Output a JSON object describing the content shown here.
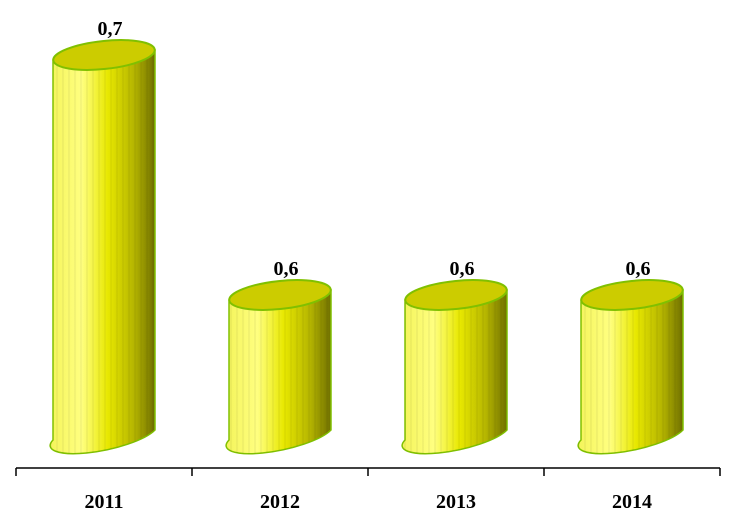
{
  "chart_data": {
    "type": "bar",
    "categories": [
      "2011",
      "2012",
      "2013",
      "2014"
    ],
    "values": [
      0.7,
      0.6,
      0.6,
      0.6
    ],
    "value_labels": [
      "0,7",
      "0,6",
      "0,6",
      "0,6"
    ],
    "title": "",
    "xlabel": "",
    "ylabel": "",
    "bar_style": "cylinder",
    "grid": false,
    "legend": "none",
    "colors": {
      "bar_light": "#ffff66",
      "bar_mid": "#e6e600",
      "bar_dark": "#7a7a00",
      "bar_top": "#cccc00",
      "bar_outline": "#80c000",
      "axis": "#000000"
    }
  }
}
